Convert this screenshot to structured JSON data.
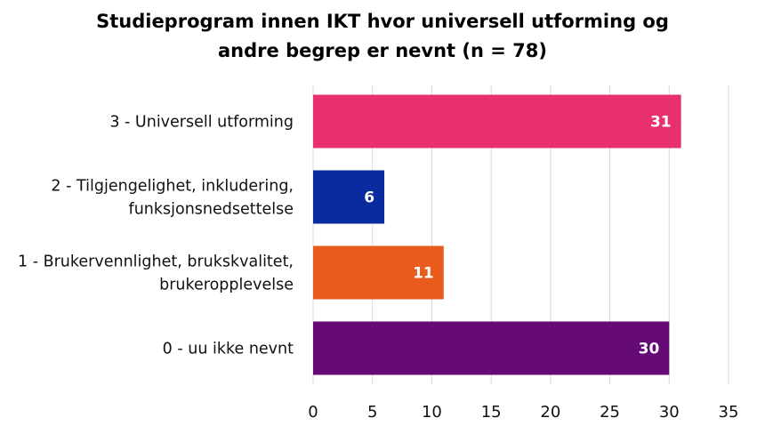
{
  "chart_data": {
    "type": "bar",
    "orientation": "horizontal",
    "title_lines": [
      "Studieprogram innen IKT hvor universell utforming og",
      "andre begrep er nevnt (n = 78)"
    ],
    "categories": [
      [
        "3 - Universell utforming"
      ],
      [
        "2 - Tilgjengelighet, inkludering,",
        "funksjonsnedsettelse"
      ],
      [
        "1 - Brukervennlighet, brukskvalitet,",
        "brukeropplevelse"
      ],
      [
        "0 - uu ikke nevnt"
      ]
    ],
    "values": [
      31,
      6,
      11,
      30
    ],
    "colors": [
      "#e8306f",
      "#0a2aa0",
      "#e95a1d",
      "#650a77"
    ],
    "xlim": [
      0,
      35
    ],
    "xticks": [
      0,
      5,
      10,
      15,
      20,
      25,
      30,
      35
    ],
    "grid": true,
    "data_labels": true,
    "xlabel": "",
    "ylabel": ""
  }
}
